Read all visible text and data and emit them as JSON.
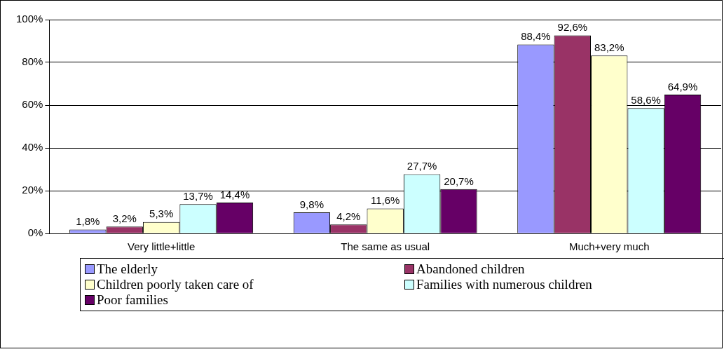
{
  "chart_data": {
    "type": "bar",
    "categories": [
      "Very little+little",
      "The same as usual",
      "Much+very much"
    ],
    "series": [
      {
        "name": "The elderly",
        "color": "#9999ff",
        "values": [
          1.8,
          9.8,
          88.4
        ],
        "value_labels": [
          "1,8%",
          "9,8%",
          "88,4%"
        ]
      },
      {
        "name": "Abandoned children",
        "color": "#993366",
        "values": [
          3.2,
          4.2,
          92.6
        ],
        "value_labels": [
          "3,2%",
          "4,2%",
          "92,6%"
        ]
      },
      {
        "name": "Children poorly taken care of",
        "color": "#ffffcc",
        "values": [
          5.3,
          11.6,
          83.2
        ],
        "value_labels": [
          "5,3%",
          "11,6%",
          "83,2%"
        ]
      },
      {
        "name": "Families with numerous children",
        "color": "#ccffff",
        "values": [
          13.7,
          27.7,
          58.6
        ],
        "value_labels": [
          "13,7%",
          "27,7%",
          "58,6%"
        ]
      },
      {
        "name": "Poor families",
        "color": "#660066",
        "values": [
          14.4,
          20.7,
          64.9
        ],
        "value_labels": [
          "14,4%",
          "20,7%",
          "64,9%"
        ]
      }
    ],
    "ylim": [
      0,
      100
    ],
    "yticks": [
      {
        "value": 0,
        "label": "0%"
      },
      {
        "value": 20,
        "label": "20%"
      },
      {
        "value": 40,
        "label": "40%"
      },
      {
        "value": 60,
        "label": "60%"
      },
      {
        "value": 80,
        "label": "80%"
      },
      {
        "value": 100,
        "label": "100%"
      }
    ],
    "grid": "y",
    "legend": "bottom"
  }
}
